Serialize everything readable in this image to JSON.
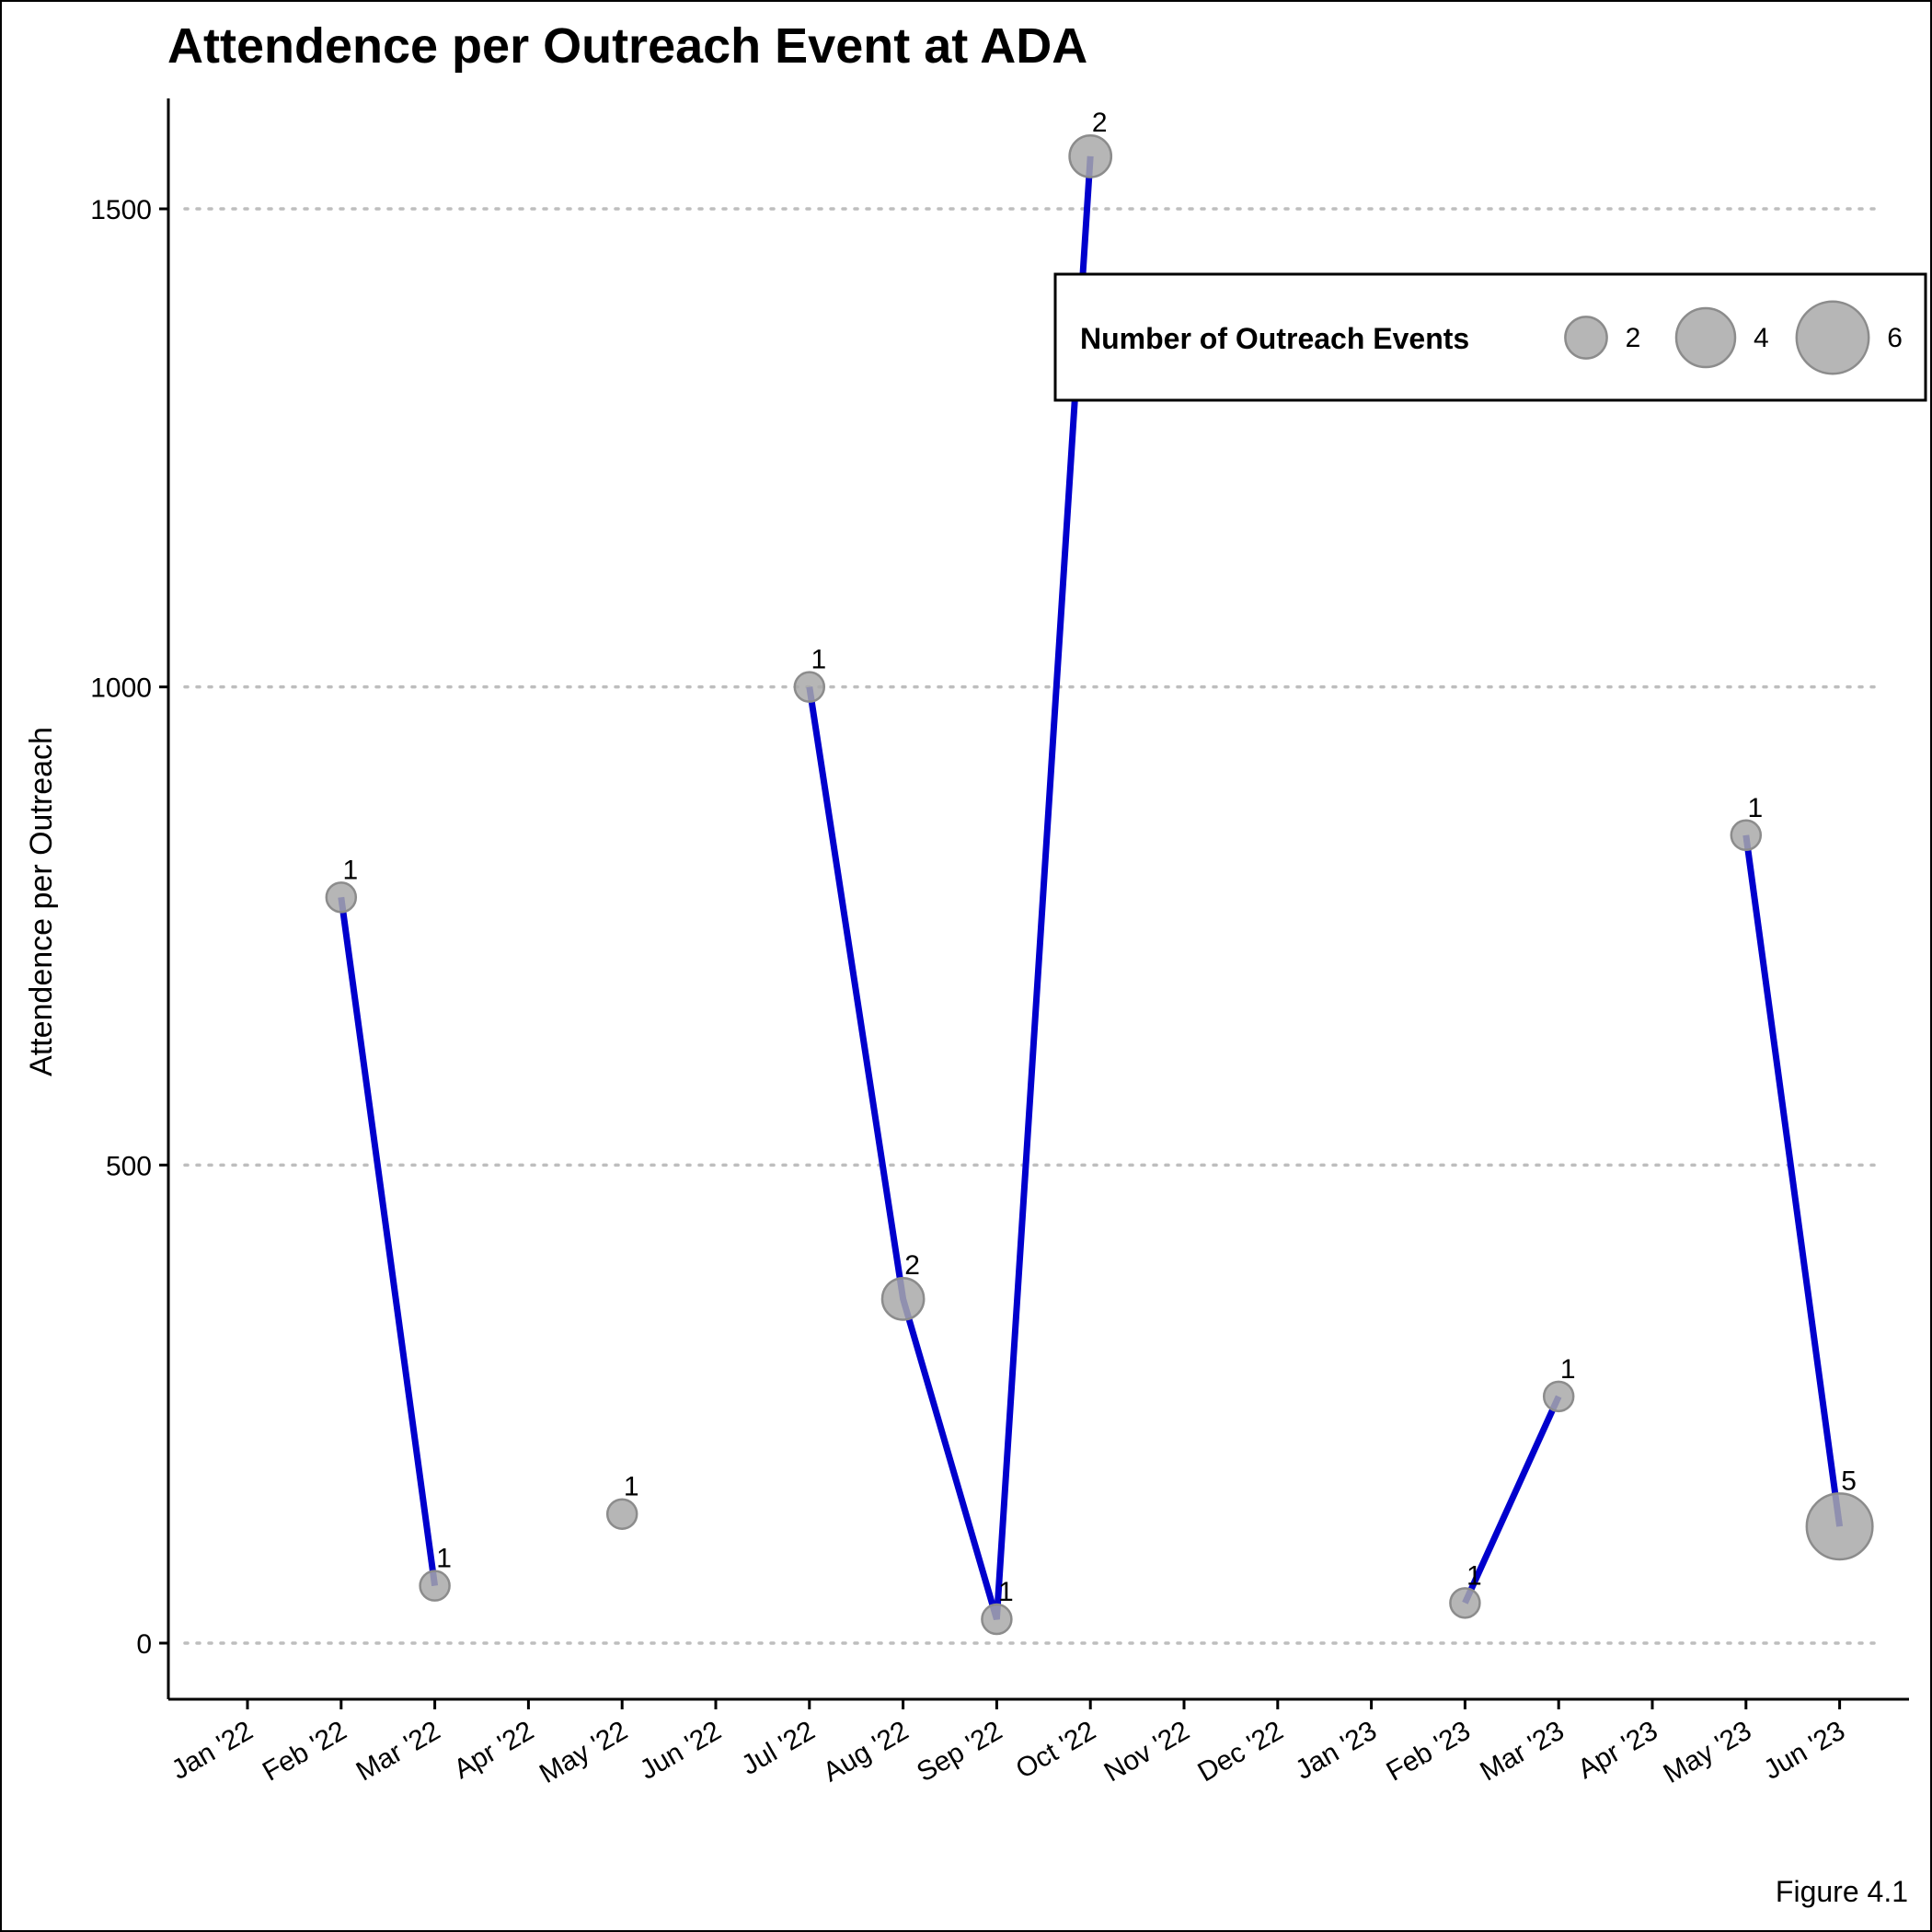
{
  "chart_data": {
    "type": "scatter",
    "title": "Attendence per Outreach Event at ADA",
    "xlabel": "",
    "ylabel": "Attendence per Outreach",
    "caption": "Figure 4.1",
    "x_ticks": [
      "Jan '22",
      "Feb '22",
      "Mar '22",
      "Apr '22",
      "May '22",
      "Jun '22",
      "Jul '22",
      "Aug '22",
      "Sep '22",
      "Oct '22",
      "Nov '22",
      "Dec '22",
      "Jan '23",
      "Feb '23",
      "Mar '23",
      "Apr '23",
      "May '23",
      "Jun '23"
    ],
    "y_ticks": [
      0,
      500,
      1000,
      1500
    ],
    "ylim": [
      -60,
      1620
    ],
    "grid": "horizontal dotted",
    "points": [
      {
        "x": "2022-02-01",
        "y": 780,
        "events": 1,
        "label": "1"
      },
      {
        "x": "2022-03-01",
        "y": 60,
        "events": 1,
        "label": "1"
      },
      {
        "x": "2022-05-01",
        "y": 135,
        "events": 1,
        "label": "1"
      },
      {
        "x": "2022-07-01",
        "y": 1000,
        "events": 1,
        "label": "1"
      },
      {
        "x": "2022-08-01",
        "y": 360,
        "events": 2,
        "label": "2"
      },
      {
        "x": "2022-09-01",
        "y": 25,
        "events": 1,
        "label": "1"
      },
      {
        "x": "2022-10-01",
        "y": 1555,
        "events": 2,
        "label": "2"
      },
      {
        "x": "2023-02-01",
        "y": 42,
        "events": 1,
        "label": "1"
      },
      {
        "x": "2023-03-01",
        "y": 258,
        "events": 1,
        "label": "1"
      },
      {
        "x": "2023-05-01",
        "y": 845,
        "events": 1,
        "label": "1"
      },
      {
        "x": "2023-06-01",
        "y": 122,
        "events": 5,
        "label": "5"
      }
    ],
    "line_segments": [
      [
        "2022-02-01",
        "2022-03-01"
      ],
      [
        "2022-07-01",
        "2022-08-01",
        "2022-09-01",
        "2022-10-01"
      ],
      [
        "2023-02-01",
        "2023-03-01"
      ],
      [
        "2023-05-01",
        "2023-06-01"
      ]
    ],
    "line_color": "#0000CD",
    "point_color": "#A9A9A9",
    "legend": {
      "title": "Number of Outreach Events",
      "position": "top-right",
      "items": [
        {
          "size": 2,
          "label": "2"
        },
        {
          "size": 4,
          "label": "4"
        },
        {
          "size": 6,
          "label": "6"
        }
      ]
    }
  }
}
